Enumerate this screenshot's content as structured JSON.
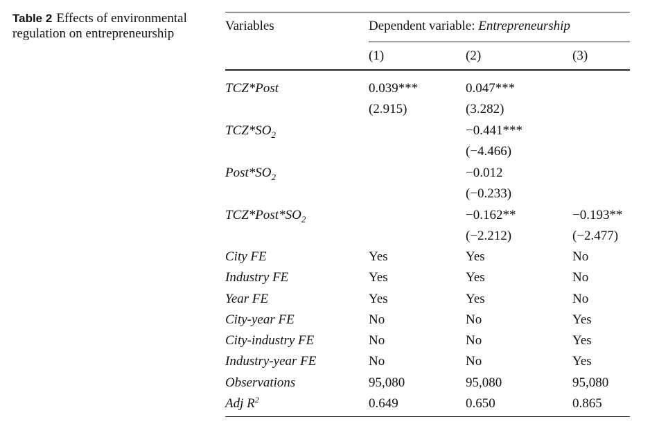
{
  "caption": {
    "label": "Table 2",
    "text": "Effects of environmental regulation on entrepreneurship"
  },
  "header": {
    "variables": "Variables",
    "dep_prefix": "Dependent variable: ",
    "dep_name": "Entrepreneurship",
    "cols": [
      "(1)",
      "(2)",
      "(3)"
    ]
  },
  "coef": {
    "tcz_post": {
      "name": "TCZ*Post",
      "c1": "0.039***",
      "c1_t": "(2.915)",
      "c2": "0.047***",
      "c2_t": "(3.282)"
    },
    "tcz_so2": {
      "name": "TCZ*SO",
      "sub": "2",
      "c2": "−0.441***",
      "c2_t": "(−4.466)"
    },
    "post_so2": {
      "name": "Post*SO",
      "sub": "2",
      "c2": "−0.012",
      "c2_t": "(−0.233)"
    },
    "tcz_post_so2": {
      "name": "TCZ*Post*SO",
      "sub": "2",
      "c2": "−0.162**",
      "c2_t": "(−2.212)",
      "c3": "−0.193**",
      "c3_t": "(−2.477)"
    }
  },
  "controls": [
    {
      "name": "City FE",
      "c1": "Yes",
      "c2": "Yes",
      "c3": "No"
    },
    {
      "name": "Industry FE",
      "c1": "Yes",
      "c2": "Yes",
      "c3": "No"
    },
    {
      "name": "Year FE",
      "c1": "Yes",
      "c2": "Yes",
      "c3": "No"
    },
    {
      "name": "City-year FE",
      "c1": "No",
      "c2": "No",
      "c3": "Yes"
    },
    {
      "name": "City-industry FE",
      "c1": "No",
      "c2": "No",
      "c3": "Yes"
    },
    {
      "name": "Industry-year FE",
      "c1": "No",
      "c2": "No",
      "c3": "Yes"
    },
    {
      "name": "Observations",
      "c1": "95,080",
      "c2": "95,080",
      "c3": "95,080"
    }
  ],
  "adj": {
    "name": "Adj R",
    "sup": "2",
    "c1": "0.649",
    "c2": "0.650",
    "c3": "0.865"
  }
}
